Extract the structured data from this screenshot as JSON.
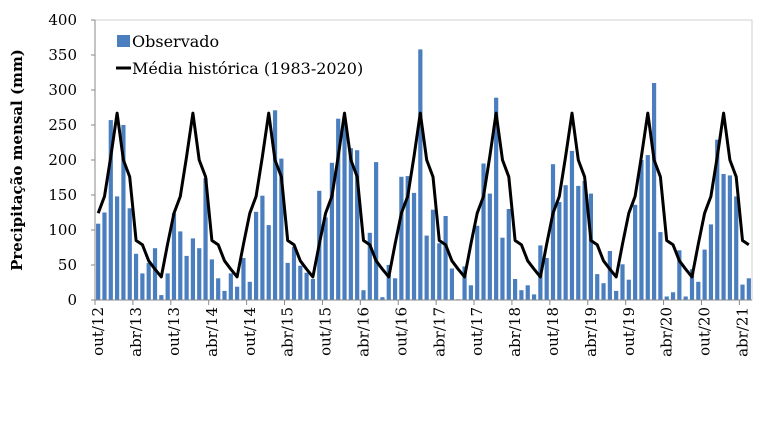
{
  "chart_data": {
    "type": "bar",
    "title": "",
    "xlabel": "",
    "ylabel": "Precipitação mensal (mm)",
    "ylim": [
      0,
      400
    ],
    "yticks": [
      0,
      50,
      100,
      150,
      200,
      250,
      300,
      350,
      400
    ],
    "grid": false,
    "legend_position": "top-left",
    "x_tick_labels": [
      "out/12",
      "abr/13",
      "out/13",
      "abr/14",
      "out/14",
      "abr/15",
      "out/15",
      "abr/16",
      "out/16",
      "abr/17",
      "out/17",
      "abr/18",
      "out/18",
      "abr/19",
      "out/19",
      "abr/20",
      "out/20",
      "abr/21"
    ],
    "x_tick_every_months": 6,
    "start_month": "out/12",
    "end_month": "mai/21",
    "series": [
      {
        "name": "Observado",
        "type": "bar",
        "color": "#4a7ebf",
        "values": [
          109,
          125,
          257,
          148,
          250,
          131,
          66,
          38,
          53,
          74,
          7,
          38,
          124,
          98,
          63,
          88,
          74,
          174,
          58,
          31,
          13,
          38,
          19,
          60,
          26,
          126,
          149,
          107,
          271,
          202,
          53,
          76,
          49,
          39,
          30,
          156,
          118,
          196,
          259,
          255,
          217,
          214,
          14,
          96,
          197,
          4,
          50,
          31,
          176,
          177,
          153,
          358,
          92,
          129,
          81,
          120,
          45,
          1,
          48,
          21,
          106,
          195,
          152,
          289,
          89,
          130,
          30,
          14,
          21,
          8,
          78,
          60,
          194,
          140,
          164,
          213,
          163,
          170,
          152,
          37,
          24,
          70,
          13,
          51,
          29,
          136,
          200,
          207,
          310,
          97,
          5,
          11,
          71,
          5,
          44,
          26,
          72,
          108,
          229,
          180,
          178,
          148,
          22,
          31
        ]
      },
      {
        "name": "Média histórica (1983-2020)",
        "type": "line",
        "color": "#000000",
        "monthly_climatology_oct_to_sep": [
          124,
          148,
          205,
          267,
          200,
          176,
          85,
          79,
          56,
          44,
          33,
          80
        ]
      }
    ]
  }
}
